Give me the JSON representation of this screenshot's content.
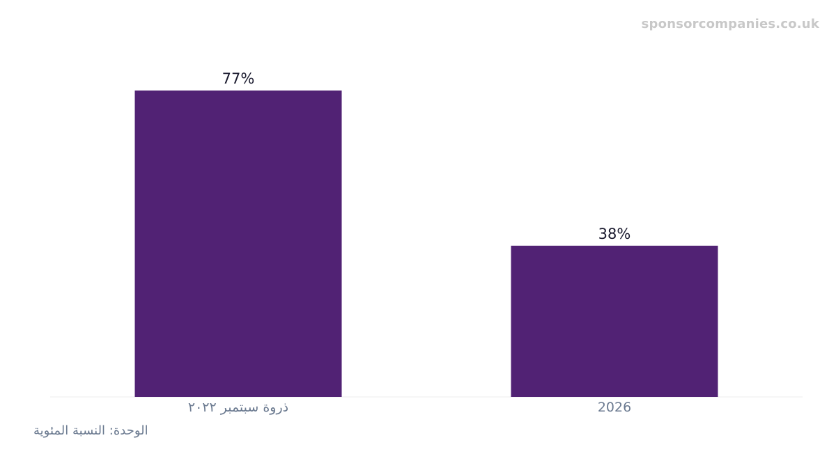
{
  "watermark": "sponsorcompanies.co.uk",
  "unit_note": "الوحدة: النسبة المئوية",
  "colors": {
    "bar": "#512274",
    "value_label": "#1a1a2e",
    "tick_label": "#6b7a90",
    "baseline": "#eeeeee"
  },
  "chart_data": {
    "type": "bar",
    "categories": [
      "ذروة سبتمبر ٢٠٢٢",
      "2026"
    ],
    "values": [
      77,
      38
    ],
    "value_labels": [
      "77%",
      "38%"
    ],
    "ylim": [
      0,
      77
    ],
    "grid": false,
    "legend": "none"
  }
}
